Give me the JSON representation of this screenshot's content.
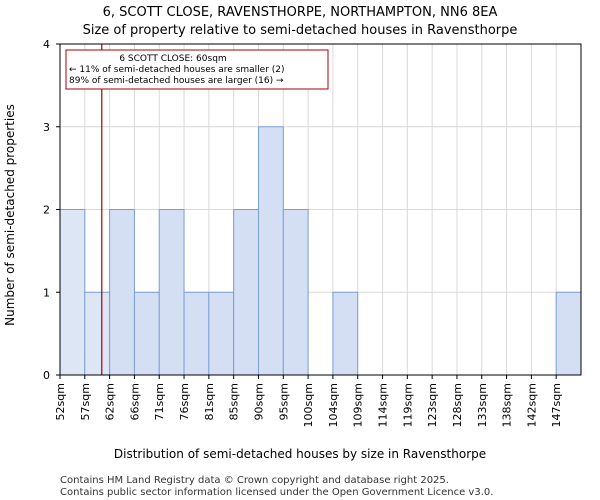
{
  "chart_data": {
    "type": "bar",
    "title_line1": "6, SCOTT CLOSE, RAVENSTHORPE, NORTHAMPTON, NN6 8EA",
    "title_line2": "Size of property relative to semi-detached houses in Ravensthorpe",
    "xlabel": "Distribution of semi-detached houses by size in Ravensthorpe",
    "ylabel": "Number of semi-detached properties",
    "ylim": [
      0,
      4
    ],
    "yticks": [
      "0",
      "1",
      "2",
      "3",
      "4"
    ],
    "categories": [
      "52sqm",
      "57sqm",
      "62sqm",
      "66sqm",
      "71sqm",
      "76sqm",
      "81sqm",
      "85sqm",
      "90sqm",
      "95sqm",
      "100sqm",
      "104sqm",
      "109sqm",
      "114sqm",
      "119sqm",
      "123sqm",
      "128sqm",
      "133sqm",
      "138sqm",
      "142sqm",
      "147sqm"
    ],
    "values": [
      2,
      1,
      2,
      1,
      2,
      1,
      1,
      2,
      3,
      2,
      0,
      1,
      0,
      0,
      0,
      0,
      0,
      0,
      0,
      0,
      1
    ],
    "highlight_count": 2,
    "bar_color_highlight": "#dce6f5",
    "bar_color": "#d4dff3",
    "bar_edge_color": "#7a9fd4",
    "grid": true,
    "property_marker": {
      "value_sqm": 60,
      "color": "#aa0000"
    },
    "annotation": {
      "line1": "6 SCOTT CLOSE: 60sqm",
      "line2": "← 11% of semi-detached houses are smaller (2)",
      "line3": "89% of semi-detached houses are larger (16) →"
    },
    "footer_line1": "Contains HM Land Registry data © Crown copyright and database right 2025.",
    "footer_line2": "Contains public sector information licensed under the Open Government Licence v3.0."
  }
}
